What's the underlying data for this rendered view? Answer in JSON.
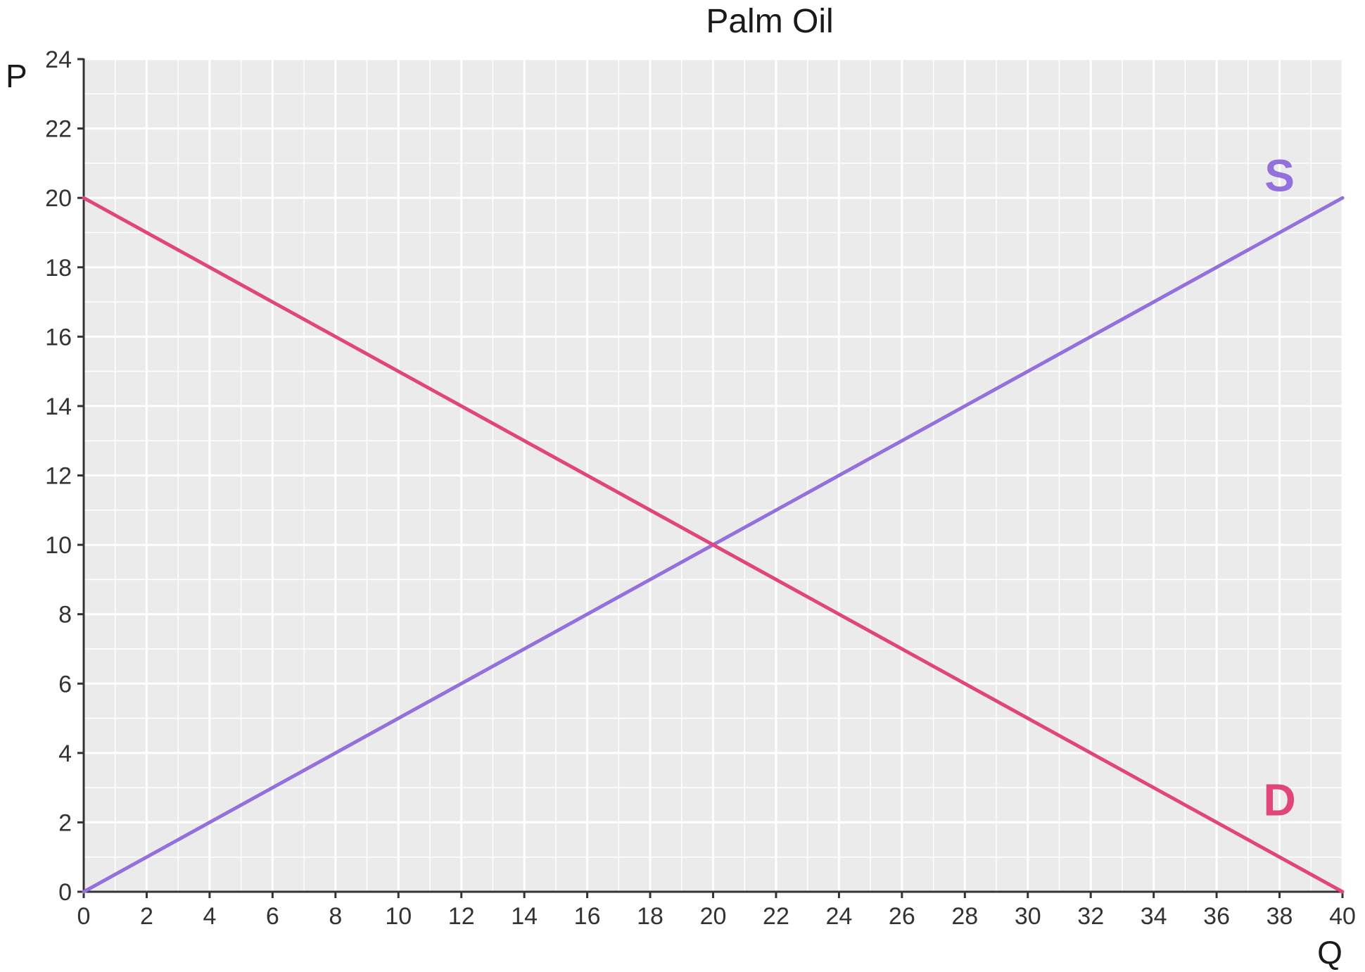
{
  "chart_data": {
    "type": "line",
    "title": "Palm Oil",
    "xlabel": "Q",
    "ylabel": "P",
    "xlim": [
      0,
      40
    ],
    "ylim": [
      0,
      24
    ],
    "x_ticks": [
      0,
      2,
      4,
      6,
      8,
      10,
      12,
      14,
      16,
      18,
      20,
      22,
      24,
      26,
      28,
      30,
      32,
      34,
      36,
      38,
      40
    ],
    "y_ticks": [
      0,
      2,
      4,
      6,
      8,
      10,
      12,
      14,
      16,
      18,
      20,
      22,
      24
    ],
    "grid": true,
    "minor_grid_step_x": 1,
    "minor_grid_step_y": 1,
    "background_color": "#ebebeb",
    "grid_color": "#ffffff",
    "series": [
      {
        "name": "S",
        "color": "#9370DB",
        "points": [
          [
            0,
            0
          ],
          [
            40,
            20
          ]
        ],
        "label_at": [
          38,
          20.2
        ]
      },
      {
        "name": "D",
        "color": "#E0457B",
        "points": [
          [
            0,
            20
          ],
          [
            40,
            0
          ]
        ],
        "label_at": [
          38,
          2.2
        ]
      }
    ]
  }
}
